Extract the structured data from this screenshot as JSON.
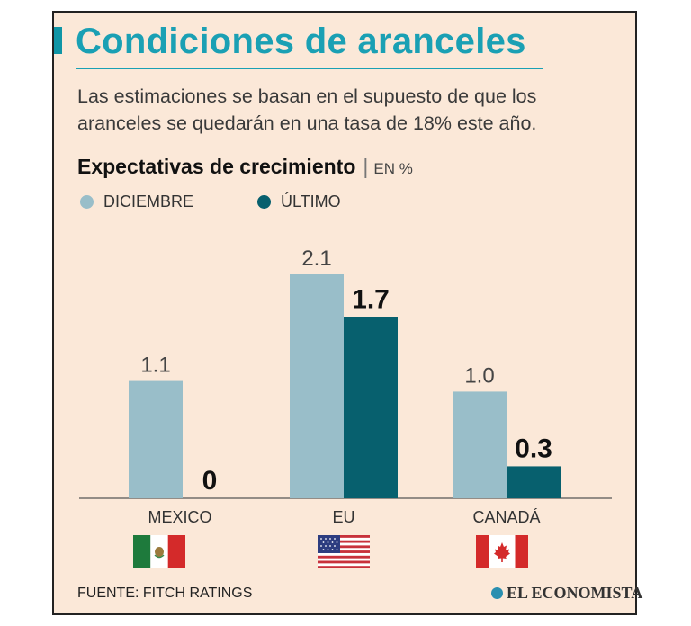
{
  "title": "Condiciones de aranceles",
  "subtitle": "Las estimaciones se basan en el supuesto de que los aranceles se quedarán en una tasa de 18% este año.",
  "chart_heading": {
    "main": "Expectativas de crecimiento",
    "separator": "|",
    "unit": "EN %"
  },
  "legend": [
    {
      "label": "DICIEMBRE",
      "color": "#99bec9"
    },
    {
      "label": "ÚLTIMO",
      "color": "#07606e"
    }
  ],
  "chart_data": {
    "type": "bar",
    "categories": [
      "MEXICO",
      "EU",
      "CANADÁ"
    ],
    "series": [
      {
        "name": "DICIEMBRE",
        "values": [
          1.1,
          2.1,
          1.0
        ],
        "labels": [
          "1.1",
          "2.1",
          "1.0"
        ],
        "color": "#99bec9"
      },
      {
        "name": "ÚLTIMO",
        "values": [
          0,
          1.7,
          0.3
        ],
        "labels": [
          "0",
          "1.7",
          "0.3"
        ],
        "color": "#07606e"
      }
    ],
    "ylim": [
      0,
      2.1
    ],
    "grid": false,
    "legend_position": "top-left"
  },
  "flags": [
    {
      "country": "mexico",
      "icon": "mexico-flag-icon"
    },
    {
      "country": "usa",
      "icon": "usa-flag-icon"
    },
    {
      "country": "canada",
      "icon": "canada-flag-icon"
    }
  ],
  "source": "FUENTE: FITCH RATINGS",
  "brand": "EL ECONOMISTA"
}
